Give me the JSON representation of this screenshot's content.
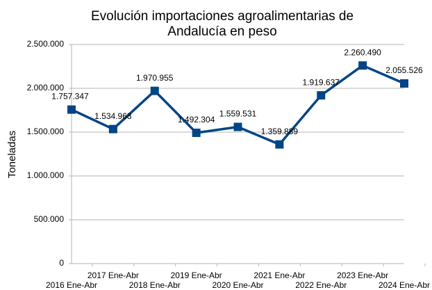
{
  "chart_data": {
    "type": "line",
    "title": [
      "Evolución importaciones agroalimentarias de",
      "Andalucía en peso"
    ],
    "y_label": "Toneladas",
    "categories": [
      "2016 Ene-Abr",
      "2017 Ene-Abr",
      "2018 Ene-Abr",
      "2019 Ene-Abr",
      "2020 Ene-Abr",
      "2021 Ene-Abr",
      "2022 Ene-Abr",
      "2023 Ene-Abr",
      "2024 Ene-Abr"
    ],
    "series": [
      {
        "name": "Toneladas",
        "color": "#004586",
        "values": [
          1757347,
          1534968,
          1970955,
          1492304,
          1559531,
          1359889,
          1919637,
          2260490,
          2055526
        ],
        "value_labels": [
          "1.757.347",
          "1.534.968",
          "1.970.955",
          "1.492.304",
          "1.559.531",
          "1.359.889",
          "1.919.637",
          "2.260.490",
          "2.055.526"
        ]
      }
    ],
    "ylim": [
      0,
      2500000
    ],
    "yticks": [
      0,
      {
        "value": 500000,
        "label": "500.000"
      },
      {
        "value": 1000000,
        "label": "1.000.000"
      },
      {
        "value": 1500000,
        "label": "1.500.000"
      },
      {
        "value": 2000000,
        "label": "2.000.000"
      },
      {
        "value": 2500000,
        "label": "2.500.000"
      }
    ],
    "grid": true
  }
}
